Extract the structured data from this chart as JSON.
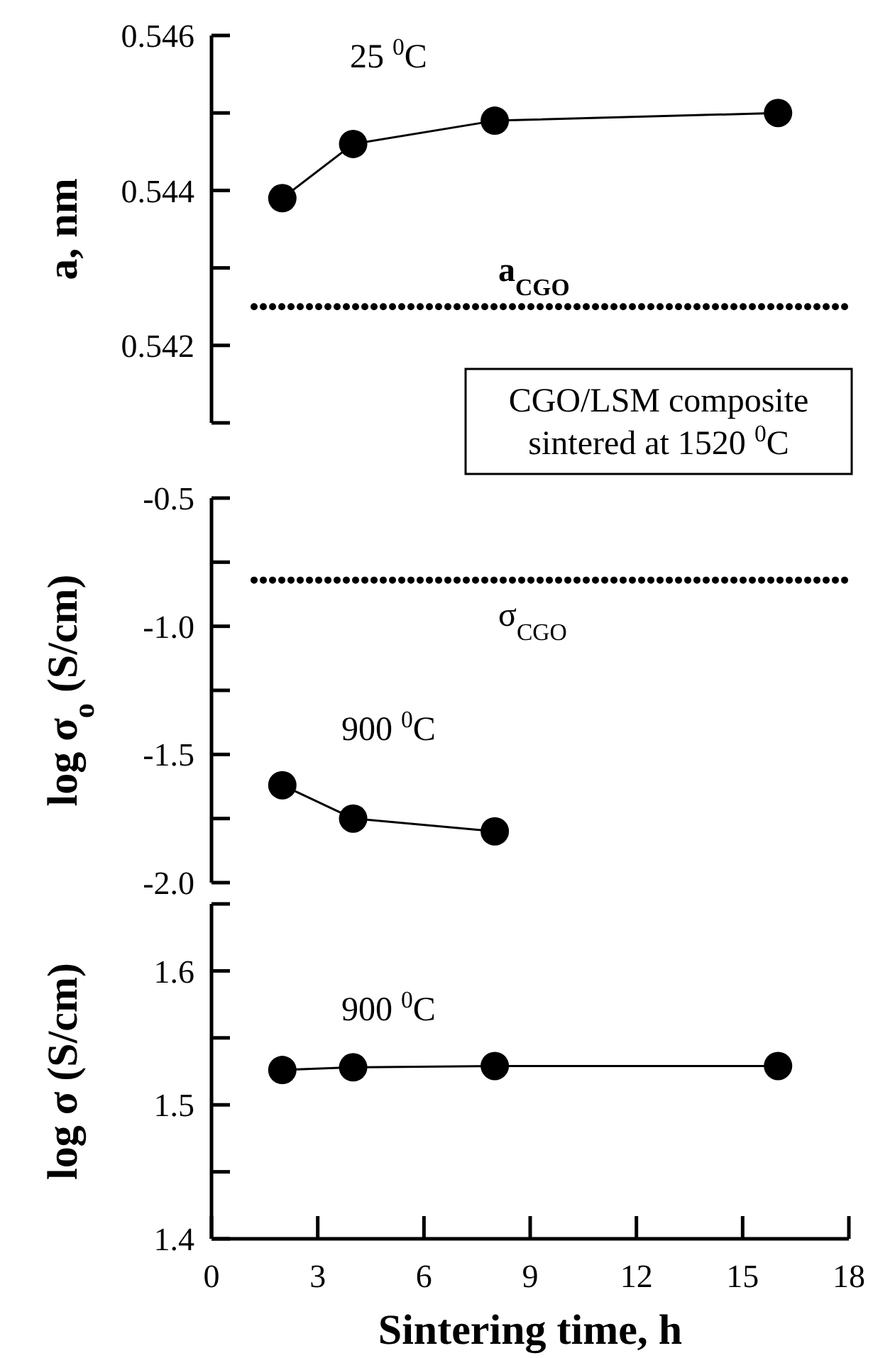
{
  "chart_data": [
    {
      "type": "line",
      "ylabel": "a, nm",
      "xlim": [
        0,
        18
      ],
      "ylim": [
        0.541,
        0.546
      ],
      "yticks": [
        {
          "value": 0.541,
          "label": null
        },
        {
          "value": 0.542,
          "label": "0.542"
        },
        {
          "value": 0.543,
          "label": null
        },
        {
          "value": 0.544,
          "label": "0.544"
        },
        {
          "value": 0.545,
          "label": null
        },
        {
          "value": 0.546,
          "label": "0.546"
        }
      ],
      "tick_labels": "y",
      "marker": "circle",
      "grid": false,
      "x": [
        2,
        4,
        8,
        16
      ],
      "series": [
        {
          "name": "25 $^{0}$C",
          "color": "#000000",
          "values": [
            0.5439,
            0.5446,
            0.5449,
            0.545
          ]
        }
      ],
      "ref_lines": [
        {
          "axis": "y",
          "value": 0.5425,
          "label": "a$_{CGO}$",
          "line_style": "dotted",
          "color": "#000000"
        }
      ],
      "annotations": [
        "CGO/LSM composite sintered at 1520 $^{0}$C"
      ]
    },
    {
      "type": "line",
      "ylabel": "log σ$_{o}$ (S/cm)",
      "xlim": [
        0,
        18
      ],
      "ylim": [
        -2.0,
        -0.5
      ],
      "yticks": [
        {
          "value": -2.0,
          "label": "-2.0"
        },
        {
          "value": -1.75,
          "label": null
        },
        {
          "value": -1.5,
          "label": "-1.5"
        },
        {
          "value": -1.25,
          "label": null
        },
        {
          "value": -1.0,
          "label": "-1.0"
        },
        {
          "value": -0.75,
          "label": null
        },
        {
          "value": -0.5,
          "label": "-0.5"
        }
      ],
      "tick_labels": "y",
      "marker": "circle",
      "grid": false,
      "x": [
        2,
        4,
        8
      ],
      "series": [
        {
          "name": "900 $^{0}$C",
          "color": "#000000",
          "values": [
            -1.62,
            -1.75,
            -1.8
          ]
        }
      ],
      "ref_lines": [
        {
          "axis": "y",
          "value": -0.82,
          "label": "σ$_{CGO}$",
          "line_style": "dotted",
          "color": "#000000"
        }
      ]
    },
    {
      "type": "line",
      "xlabel": "Sintering time, h",
      "ylabel": "log σ (S/cm)",
      "xlim": [
        0,
        18
      ],
      "xticks": [
        0,
        3,
        6,
        9,
        12,
        15,
        18
      ],
      "ylim": [
        1.4,
        1.65
      ],
      "yticks": [
        {
          "value": 1.4,
          "label": "1.4"
        },
        {
          "value": 1.45,
          "label": null
        },
        {
          "value": 1.5,
          "label": "1.5"
        },
        {
          "value": 1.55,
          "label": null
        },
        {
          "value": 1.6,
          "label": "1.6"
        },
        {
          "value": 1.65,
          "label": null
        }
      ],
      "marker": "circle",
      "grid": false,
      "x": [
        2,
        4,
        8,
        16
      ],
      "series": [
        {
          "name": "900 $^{0}$C",
          "color": "#000000",
          "values": [
            1.526,
            1.528,
            1.529,
            1.529
          ]
        }
      ]
    }
  ]
}
